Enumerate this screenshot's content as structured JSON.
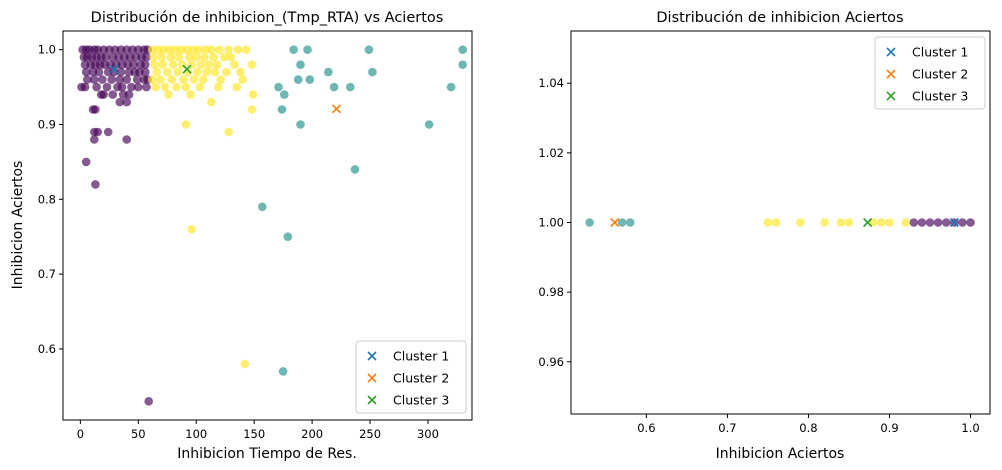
{
  "chart_data": [
    {
      "type": "scatter",
      "title": "Distribución de inhibicion_(Tmp_RTA) vs Aciertos",
      "xlabel": "Inhibicion Tiempo de Res.",
      "ylabel": "Inhibicion Aciertos",
      "xlim": [
        -15,
        338
      ],
      "ylim": [
        0.505,
        1.025
      ],
      "xticks": [
        0,
        50,
        100,
        150,
        200,
        250,
        300
      ],
      "yticks": [
        0.6,
        0.7,
        0.8,
        0.9,
        1.0
      ],
      "xtick_labels": [
        "0",
        "50",
        "100",
        "150",
        "200",
        "250",
        "300"
      ],
      "ytick_labels": [
        "0.6",
        "0.7",
        "0.8",
        "0.9",
        "1.0"
      ],
      "grid": false,
      "legend_position": "lower right",
      "series": [
        {
          "color": "#440154",
          "marker": "circle",
          "alpha": 0.65,
          "points": [
            [
              2,
              1.0
            ],
            [
              5,
              1.0
            ],
            [
              8,
              1.0
            ],
            [
              12,
              1.0
            ],
            [
              15,
              1.0
            ],
            [
              20,
              1.0
            ],
            [
              25,
              1.0
            ],
            [
              30,
              1.0
            ],
            [
              35,
              1.0
            ],
            [
              40,
              1.0
            ],
            [
              45,
              1.0
            ],
            [
              50,
              1.0
            ],
            [
              55,
              1.0
            ],
            [
              58,
              1.0
            ],
            [
              3,
              0.99
            ],
            [
              6,
              0.99
            ],
            [
              10,
              0.99
            ],
            [
              14,
              0.99
            ],
            [
              18,
              0.99
            ],
            [
              22,
              0.99
            ],
            [
              28,
              0.99
            ],
            [
              33,
              0.99
            ],
            [
              38,
              0.99
            ],
            [
              43,
              0.99
            ],
            [
              48,
              0.99
            ],
            [
              53,
              0.99
            ],
            [
              57,
              0.99
            ],
            [
              4,
              0.98
            ],
            [
              9,
              0.98
            ],
            [
              13,
              0.98
            ],
            [
              17,
              0.98
            ],
            [
              21,
              0.98
            ],
            [
              26,
              0.98
            ],
            [
              31,
              0.98
            ],
            [
              36,
              0.98
            ],
            [
              41,
              0.98
            ],
            [
              46,
              0.98
            ],
            [
              52,
              0.98
            ],
            [
              56,
              0.98
            ],
            [
              5,
              0.97
            ],
            [
              11,
              0.97
            ],
            [
              16,
              0.97
            ],
            [
              24,
              0.97
            ],
            [
              29,
              0.97
            ],
            [
              35,
              0.97
            ],
            [
              42,
              0.97
            ],
            [
              47,
              0.97
            ],
            [
              51,
              0.97
            ],
            [
              56,
              0.97
            ],
            [
              6,
              0.96
            ],
            [
              12,
              0.96
            ],
            [
              19,
              0.96
            ],
            [
              27,
              0.96
            ],
            [
              34,
              0.96
            ],
            [
              40,
              0.96
            ],
            [
              49,
              0.96
            ],
            [
              55,
              0.96
            ],
            [
              58,
              0.96
            ],
            [
              1,
              0.95
            ],
            [
              4,
              0.95
            ],
            [
              14,
              0.95
            ],
            [
              23,
              0.95
            ],
            [
              32,
              0.95
            ],
            [
              36,
              0.95
            ],
            [
              44,
              0.95
            ],
            [
              50,
              0.95
            ],
            [
              57,
              0.95
            ],
            [
              18,
              0.94
            ],
            [
              20,
              0.94
            ],
            [
              28,
              0.94
            ],
            [
              37,
              0.94
            ],
            [
              42,
              0.94
            ],
            [
              11,
              0.92
            ],
            [
              13,
              0.92
            ],
            [
              34,
              0.93
            ],
            [
              40,
              0.93
            ],
            [
              12,
              0.89
            ],
            [
              15,
              0.89
            ],
            [
              24,
              0.89
            ],
            [
              12,
              0.88
            ],
            [
              40,
              0.88
            ],
            [
              5,
              0.85
            ],
            [
              13,
              0.82
            ],
            [
              59,
              0.53
            ]
          ]
        },
        {
          "color": "#21918c",
          "marker": "circle",
          "alpha": 0.65,
          "points": [
            [
              184,
              1.0
            ],
            [
              196,
              1.0
            ],
            [
              249,
              1.0
            ],
            [
              330,
              1.0
            ],
            [
              190,
              0.98
            ],
            [
              214,
              0.97
            ],
            [
              252,
              0.97
            ],
            [
              188,
              0.96
            ],
            [
              198,
              0.96
            ],
            [
              330,
              0.98
            ],
            [
              171,
              0.95
            ],
            [
              219,
              0.95
            ],
            [
              233,
              0.95
            ],
            [
              320,
              0.95
            ],
            [
              176,
              0.94
            ],
            [
              174,
              0.92
            ],
            [
              190,
              0.9
            ],
            [
              301,
              0.9
            ],
            [
              237,
              0.84
            ],
            [
              157,
              0.79
            ],
            [
              179,
              0.75
            ],
            [
              175,
              0.57
            ]
          ]
        },
        {
          "color": "#fde725",
          "marker": "circle",
          "alpha": 0.65,
          "points": [
            [
              62,
              1.0
            ],
            [
              67,
              1.0
            ],
            [
              72,
              1.0
            ],
            [
              77,
              1.0
            ],
            [
              82,
              1.0
            ],
            [
              87,
              1.0
            ],
            [
              92,
              1.0
            ],
            [
              97,
              1.0
            ],
            [
              102,
              1.0
            ],
            [
              108,
              1.0
            ],
            [
              113,
              1.0
            ],
            [
              120,
              1.0
            ],
            [
              128,
              1.0
            ],
            [
              136,
              1.0
            ],
            [
              143,
              1.0
            ],
            [
              63,
              0.99
            ],
            [
              70,
              0.99
            ],
            [
              78,
              0.99
            ],
            [
              85,
              0.99
            ],
            [
              94,
              0.99
            ],
            [
              100,
              0.99
            ],
            [
              107,
              0.99
            ],
            [
              115,
              0.99
            ],
            [
              124,
              0.99
            ],
            [
              130,
              0.99
            ],
            [
              64,
              0.98
            ],
            [
              71,
              0.98
            ],
            [
              80,
              0.98
            ],
            [
              88,
              0.98
            ],
            [
              96,
              0.98
            ],
            [
              104,
              0.98
            ],
            [
              111,
              0.98
            ],
            [
              118,
              0.98
            ],
            [
              133,
              0.98
            ],
            [
              148,
              0.98
            ],
            [
              66,
              0.97
            ],
            [
              75,
              0.97
            ],
            [
              84,
              0.97
            ],
            [
              93,
              0.97
            ],
            [
              101,
              0.97
            ],
            [
              109,
              0.97
            ],
            [
              116,
              0.97
            ],
            [
              126,
              0.97
            ],
            [
              138,
              0.97
            ],
            [
              62,
              0.96
            ],
            [
              69,
              0.96
            ],
            [
              79,
              0.96
            ],
            [
              89,
              0.96
            ],
            [
              98,
              0.96
            ],
            [
              106,
              0.96
            ],
            [
              121,
              0.96
            ],
            [
              140,
              0.96
            ],
            [
              65,
              0.95
            ],
            [
              73,
              0.95
            ],
            [
              83,
              0.95
            ],
            [
              91,
              0.95
            ],
            [
              103,
              0.95
            ],
            [
              119,
              0.95
            ],
            [
              135,
              0.95
            ],
            [
              76,
              0.94
            ],
            [
              95,
              0.94
            ],
            [
              149,
              0.94
            ],
            [
              113,
              0.93
            ],
            [
              148,
              0.92
            ],
            [
              91,
              0.9
            ],
            [
              128,
              0.89
            ],
            [
              96,
              0.76
            ],
            [
              142,
              0.58
            ]
          ]
        }
      ],
      "centroids": [
        {
          "name": "Cluster 1",
          "color": "#1f77b4",
          "marker": "x",
          "x": 29,
          "y": 0.974
        },
        {
          "name": "Cluster 2",
          "color": "#ff7f0e",
          "marker": "x",
          "x": 221,
          "y": 0.921
        },
        {
          "name": "Cluster 3",
          "color": "#2ca02c",
          "marker": "x",
          "x": 92,
          "y": 0.974
        }
      ]
    },
    {
      "type": "scatter",
      "title": "Distribución de inhibicion Aciertos",
      "xlabel": "Inhibicion Aciertos",
      "ylabel": "",
      "xlim": [
        0.507,
        1.024
      ],
      "ylim": [
        0.945,
        1.055
      ],
      "xticks": [
        0.6,
        0.7,
        0.8,
        0.9,
        1.0
      ],
      "yticks": [
        0.96,
        0.98,
        1.0,
        1.02,
        1.04
      ],
      "xtick_labels": [
        "0.6",
        "0.7",
        "0.8",
        "0.9",
        "1.0"
      ],
      "ytick_labels": [
        "0.96",
        "0.98",
        "1.00",
        "1.02",
        "1.04"
      ],
      "grid": false,
      "legend_position": "upper right",
      "series": [
        {
          "color": "#440154",
          "marker": "circle",
          "alpha": 0.65,
          "points": [
            [
              0.93,
              1.0
            ],
            [
              0.94,
              1.0
            ],
            [
              0.95,
              1.0
            ],
            [
              0.96,
              1.0
            ],
            [
              0.97,
              1.0
            ],
            [
              0.98,
              1.0
            ],
            [
              0.99,
              1.0
            ],
            [
              1.0,
              1.0
            ]
          ]
        },
        {
          "color": "#21918c",
          "marker": "circle",
          "alpha": 0.65,
          "points": [
            [
              0.53,
              1.0
            ],
            [
              0.57,
              1.0
            ],
            [
              0.58,
              1.0
            ]
          ]
        },
        {
          "color": "#fde725",
          "marker": "circle",
          "alpha": 0.65,
          "points": [
            [
              0.75,
              1.0
            ],
            [
              0.76,
              1.0
            ],
            [
              0.79,
              1.0
            ],
            [
              0.82,
              1.0
            ],
            [
              0.84,
              1.0
            ],
            [
              0.85,
              1.0
            ],
            [
              0.88,
              1.0
            ],
            [
              0.89,
              1.0
            ],
            [
              0.9,
              1.0
            ],
            [
              0.92,
              1.0
            ]
          ]
        }
      ],
      "centroids": [
        {
          "name": "Cluster 1",
          "color": "#1f77b4",
          "marker": "x",
          "x": 0.98,
          "y": 1.0
        },
        {
          "name": "Cluster 2",
          "color": "#ff7f0e",
          "marker": "x",
          "x": 0.561,
          "y": 1.0
        },
        {
          "name": "Cluster 3",
          "color": "#2ca02c",
          "marker": "x",
          "x": 0.873,
          "y": 1.0
        }
      ]
    }
  ]
}
